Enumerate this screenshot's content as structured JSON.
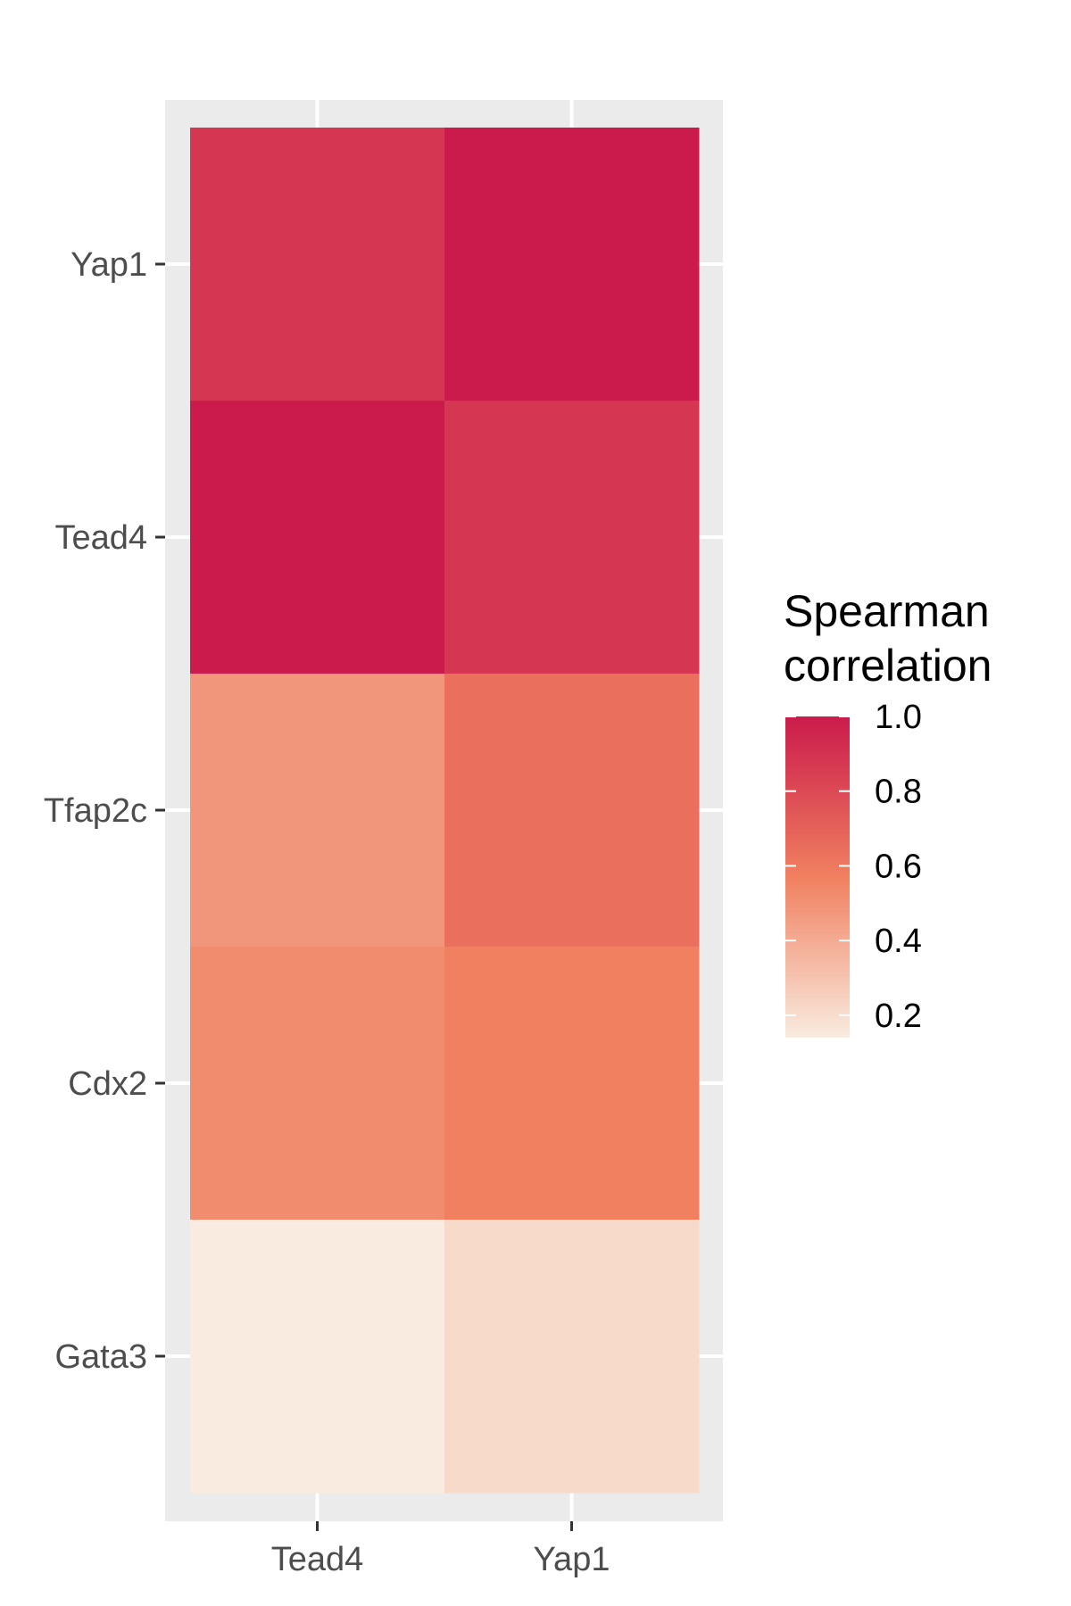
{
  "chart_data": {
    "type": "heatmap",
    "x_categories": [
      "Tead4",
      "Yap1"
    ],
    "y_categories": [
      "Gata3",
      "Cdx2",
      "Tfap2c",
      "Tead4",
      "Yap1"
    ],
    "cells": [
      {
        "x": "Tead4",
        "y": "Yap1",
        "value": 0.88
      },
      {
        "x": "Yap1",
        "y": "Yap1",
        "value": 1.0
      },
      {
        "x": "Tead4",
        "y": "Tead4",
        "value": 1.0
      },
      {
        "x": "Yap1",
        "y": "Tead4",
        "value": 0.88
      },
      {
        "x": "Tead4",
        "y": "Tfap2c",
        "value": 0.48
      },
      {
        "x": "Yap1",
        "y": "Tfap2c",
        "value": 0.64
      },
      {
        "x": "Tead4",
        "y": "Cdx2",
        "value": 0.52
      },
      {
        "x": "Yap1",
        "y": "Cdx2",
        "value": 0.57
      },
      {
        "x": "Tead4",
        "y": "Gata3",
        "value": 0.14
      },
      {
        "x": "Yap1",
        "y": "Gata3",
        "value": 0.21
      }
    ],
    "legend": {
      "title_lines": [
        "Spearman",
        "correlation"
      ],
      "ticks": [
        1.0,
        0.8,
        0.6,
        0.4,
        0.2
      ],
      "tick_labels": [
        "1.0",
        "0.8",
        "0.6",
        "0.4",
        "0.2"
      ],
      "range": [
        0.14,
        1.0
      ],
      "placement": "right"
    },
    "colors": {
      "panel_background": "#ebebeb",
      "grid": "#ffffff",
      "scale_low": "#f9ebdf",
      "scale_mid": "#f08060",
      "scale_high": "#cb1b4c"
    },
    "grid": true
  }
}
